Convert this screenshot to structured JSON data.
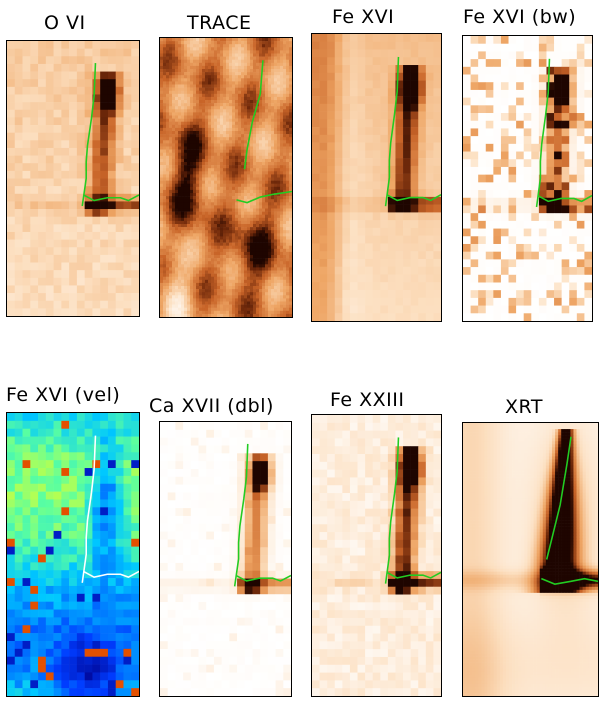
{
  "panels": [
    {
      "id": "ovi",
      "title": "O VI",
      "kind": "pixel",
      "palette": "orange",
      "style": "pixel-noisy-orange",
      "line_color": "#22cc22"
    },
    {
      "id": "trace",
      "title": "TRACE",
      "kind": "smooth",
      "palette": "orange-dark",
      "style": "smooth-dark",
      "line_color": "#22cc22"
    },
    {
      "id": "fexvi",
      "title": "Fe XVI",
      "kind": "pixel",
      "palette": "orange",
      "style": "pixel-smooth-orange",
      "line_color": "#22cc22"
    },
    {
      "id": "fexvi_bw",
      "title": "Fe XVI (bw)",
      "kind": "pixel",
      "palette": "orange-sparse",
      "style": "pixel-sparse",
      "line_color": "#22cc22"
    },
    {
      "id": "fexvi_vel",
      "title": "Fe XVI (vel)",
      "kind": "pixel",
      "palette": "jet",
      "style": "pixel-jet",
      "line_color": "#ffffff"
    },
    {
      "id": "caxvii_dbl",
      "title": "Ca XVII (dbl)",
      "kind": "pixel",
      "palette": "orange-sparse",
      "style": "pixel-faint",
      "line_color": "#22cc22"
    },
    {
      "id": "fexxiii",
      "title": "Fe XXIII",
      "kind": "pixel",
      "palette": "orange-sparse",
      "style": "pixel-faint-noise",
      "line_color": "#22cc22"
    },
    {
      "id": "xrt",
      "title": "XRT",
      "kind": "smooth",
      "palette": "orange",
      "style": "smooth-bright",
      "line_color": "#22cc22"
    }
  ]
}
